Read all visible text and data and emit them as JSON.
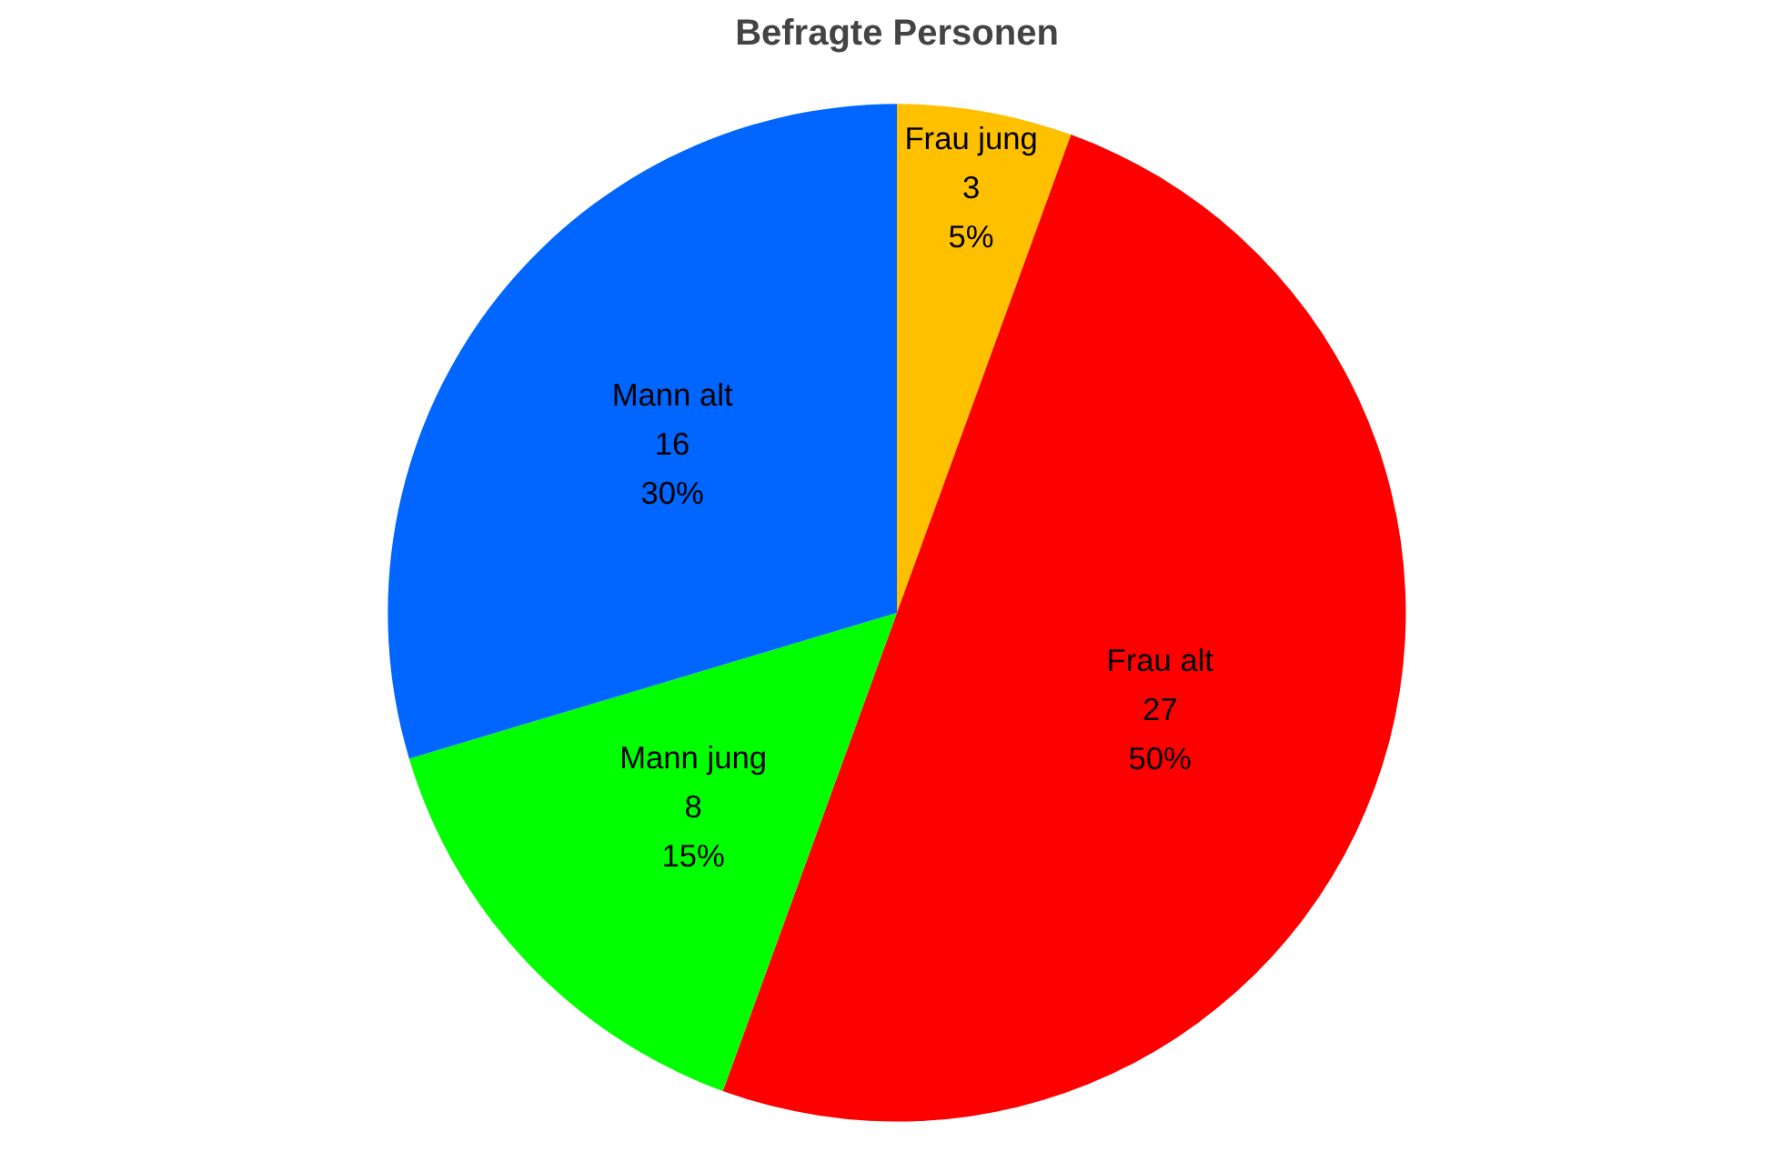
{
  "chart_data": {
    "type": "pie",
    "title": "Befragte Personen",
    "categories": [
      "Frau jung",
      "Frau alt",
      "Mann jung",
      "Mann alt"
    ],
    "values": [
      3,
      27,
      8,
      16
    ],
    "colors": [
      "#ffc000",
      "#ff0000",
      "#00ff00",
      "#0066ff"
    ],
    "value_labels": [
      "3\n5%",
      "27\n50%",
      "8\n15%",
      "16\n30%"
    ]
  }
}
